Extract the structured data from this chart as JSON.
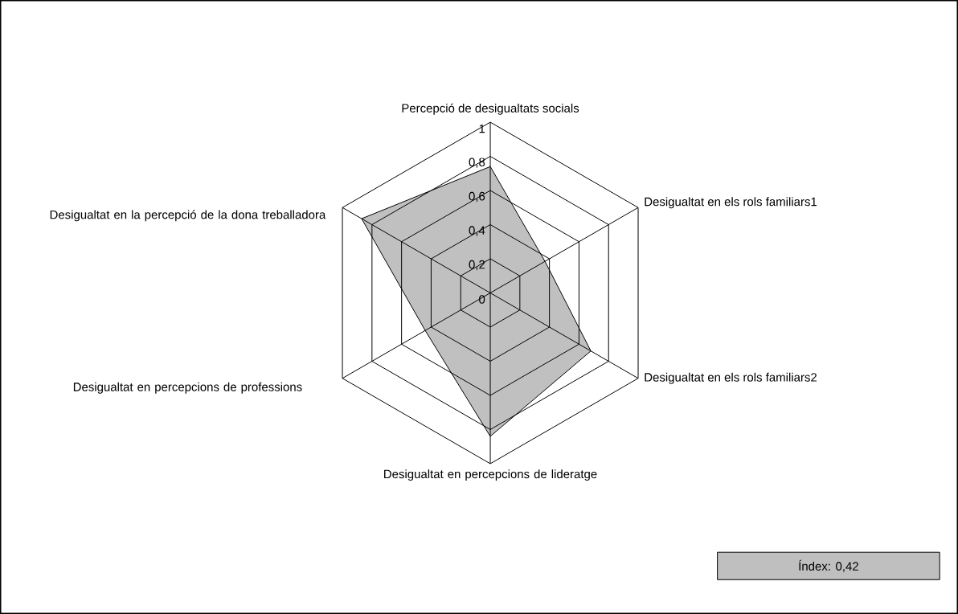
{
  "chart_data": {
    "type": "radar",
    "categories": [
      "Percepció de desigualtats socials",
      "Desigualtat en els rols familiars1",
      "Desigualtat en els rols familiars2",
      "Desigualtat en percepcions de lideratge",
      "Desigualtat en percepcions de professions",
      "Desigualtat en la percepció de la dona treballadora"
    ],
    "series": [
      {
        "color": "#c0c0c0",
        "values": [
          0.74,
          0.37,
          0.68,
          0.84,
          0.44,
          0.87
        ]
      }
    ],
    "ylim": [
      0,
      1
    ],
    "yticks": [
      0,
      {
        "value": 0.2,
        "label": "0,2"
      },
      {
        "value": 0.4,
        "label": "0,4"
      },
      {
        "value": 0.6,
        "label": "0,6"
      },
      {
        "value": 0.8,
        "label": "0,8"
      },
      1
    ],
    "annotations": [
      "Índex: 0,42"
    ]
  }
}
